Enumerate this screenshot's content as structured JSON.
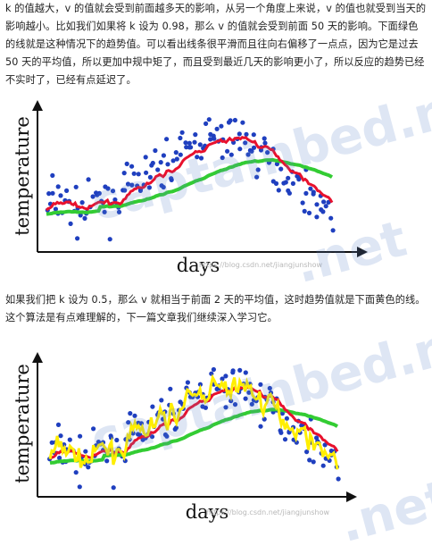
{
  "article": {
    "paragraph_1": "k 的值越大，v 的值就会受到前面越多天的影响，从另一个角度上来说，v 的值也就受到当天的影响越小。比如我们如果将 k 设为 0.98，那么 v 的值就会受到前面 50 天的影响。下面绿色的线就是这种情况下的趋势值。可以看出线条很平滑而且往向右偏移了一点点，因为它是过去 50 天的平均值，所以更加中规中矩了，而且受到最近几天的影响更小了，所以反应的趋势已经不实时了，已经有点延迟了。",
    "paragraph_2": "如果我们把 k 设为 0.5，那么 v 就相当于前面 2 天的平均值，这时趋势值就是下面黄色的线。这个算法是有点难理解的，下一篇文章我们继续深入学习它。"
  },
  "figures": [
    {
      "ylabel": "temperature",
      "xlabel": "days",
      "credit": "https://blog.csdn.net/jiangjunshow",
      "series": [
        "data",
        "red",
        "green"
      ]
    },
    {
      "ylabel": "temperature",
      "xlabel": "days",
      "credit": "https://blog.csdn.net/jiangjunshow",
      "series": [
        "data",
        "red",
        "green",
        "yellow"
      ]
    }
  ],
  "colors": {
    "points": "#1f3fbf",
    "red": "#e8112d",
    "green": "#33cc33",
    "yellow": "#ffee00",
    "axis": "#111111"
  },
  "watermark": {
    "text_1": "captainbed.net",
    "text_2": ".net"
  }
}
